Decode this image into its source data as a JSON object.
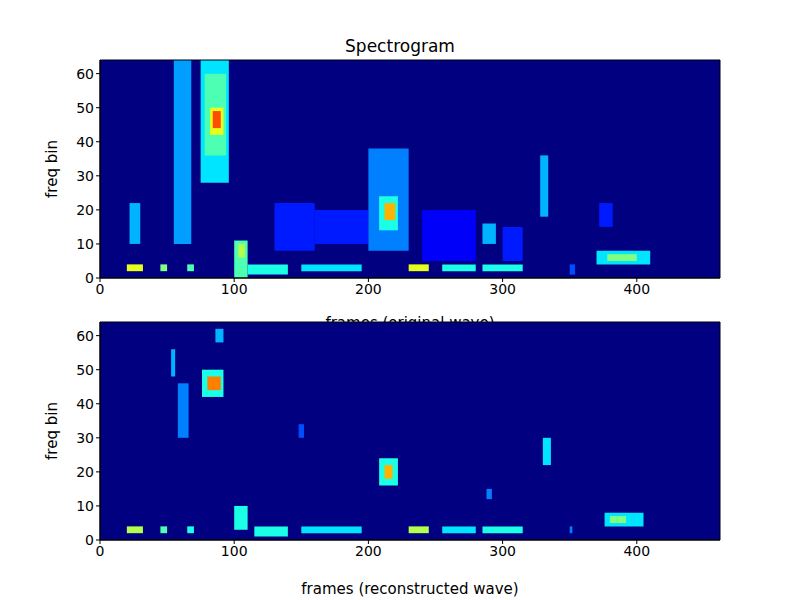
{
  "chart_data": [
    {
      "type": "heatmap",
      "title": "Spectrogram",
      "xlabel": "frames (original wave)",
      "ylabel": "freq bin",
      "xlim": [
        0,
        462
      ],
      "ylim": [
        0,
        64
      ],
      "xticks": [
        0,
        100,
        200,
        300,
        400
      ],
      "yticks": [
        0,
        10,
        20,
        30,
        40,
        50,
        60
      ],
      "zlim": [
        0,
        1
      ],
      "cells": [
        [
          20,
          32,
          2,
          4,
          0.6
        ],
        [
          22,
          30,
          10,
          22,
          0.3
        ],
        [
          45,
          50,
          2,
          4,
          0.5
        ],
        [
          55,
          68,
          10,
          64,
          0.28
        ],
        [
          65,
          70,
          2,
          4,
          0.45
        ],
        [
          75,
          96,
          28,
          64,
          0.35
        ],
        [
          78,
          94,
          36,
          60,
          0.45
        ],
        [
          82,
          92,
          42,
          50,
          0.6
        ],
        [
          84,
          90,
          44,
          49,
          0.8
        ],
        [
          100,
          110,
          0,
          11,
          0.45
        ],
        [
          103,
          108,
          6,
          10,
          0.55
        ],
        [
          110,
          140,
          1,
          4,
          0.4
        ],
        [
          130,
          160,
          8,
          22,
          0.15
        ],
        [
          150,
          195,
          2,
          4,
          0.35
        ],
        [
          160,
          200,
          10,
          20,
          0.15
        ],
        [
          200,
          230,
          8,
          38,
          0.25
        ],
        [
          208,
          222,
          14,
          24,
          0.4
        ],
        [
          212,
          220,
          17,
          22,
          0.7
        ],
        [
          230,
          245,
          2,
          4,
          0.6
        ],
        [
          240,
          280,
          5,
          20,
          0.12
        ],
        [
          255,
          280,
          2,
          4,
          0.4
        ],
        [
          285,
          315,
          2,
          4,
          0.4
        ],
        [
          285,
          295,
          10,
          16,
          0.3
        ],
        [
          300,
          315,
          5,
          15,
          0.15
        ],
        [
          328,
          334,
          18,
          36,
          0.3
        ],
        [
          370,
          410,
          4,
          8,
          0.35
        ],
        [
          378,
          400,
          5,
          7,
          0.5
        ],
        [
          372,
          382,
          15,
          22,
          0.15
        ],
        [
          350,
          354,
          1,
          4,
          0.2
        ]
      ]
    },
    {
      "type": "heatmap",
      "xlabel": "frames (reconstructed wave)",
      "ylabel": "freq bin",
      "xlim": [
        0,
        462
      ],
      "ylim": [
        0,
        64
      ],
      "xticks": [
        0,
        100,
        200,
        300,
        400
      ],
      "yticks": [
        0,
        10,
        20,
        30,
        40,
        50,
        60
      ],
      "zlim": [
        0,
        1
      ],
      "cells": [
        [
          20,
          32,
          2,
          4,
          0.55
        ],
        [
          45,
          50,
          2,
          4,
          0.45
        ],
        [
          53,
          56,
          48,
          56,
          0.3
        ],
        [
          58,
          66,
          30,
          46,
          0.25
        ],
        [
          65,
          70,
          2,
          4,
          0.4
        ],
        [
          76,
          92,
          42,
          50,
          0.4
        ],
        [
          80,
          90,
          44,
          48,
          0.75
        ],
        [
          86,
          92,
          58,
          62,
          0.3
        ],
        [
          100,
          110,
          3,
          10,
          0.4
        ],
        [
          115,
          140,
          1,
          4,
          0.4
        ],
        [
          148,
          152,
          30,
          34,
          0.2
        ],
        [
          150,
          195,
          2,
          4,
          0.35
        ],
        [
          208,
          222,
          16,
          24,
          0.4
        ],
        [
          212,
          218,
          18,
          22,
          0.7
        ],
        [
          230,
          245,
          2,
          4,
          0.55
        ],
        [
          255,
          280,
          2,
          4,
          0.35
        ],
        [
          285,
          315,
          2,
          4,
          0.4
        ],
        [
          288,
          292,
          12,
          15,
          0.25
        ],
        [
          330,
          336,
          22,
          30,
          0.35
        ],
        [
          350,
          352,
          2,
          4,
          0.25
        ],
        [
          376,
          405,
          4,
          8,
          0.35
        ],
        [
          380,
          392,
          5,
          7,
          0.5
        ]
      ]
    }
  ]
}
